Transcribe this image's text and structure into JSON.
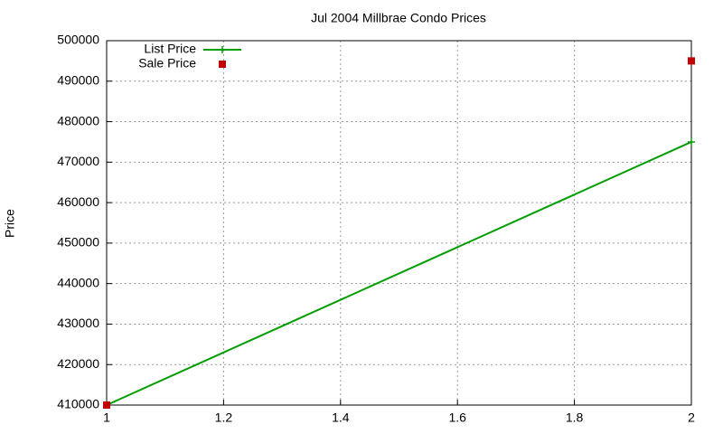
{
  "chart_data": {
    "type": "line",
    "title": "Jul 2004 Millbrae Condo Prices",
    "y_label": "Price",
    "x": [
      1,
      2
    ],
    "series": [
      {
        "name": "List Price",
        "color": "#009e00",
        "mode": "lines+points",
        "values": [
          410000,
          475000
        ]
      },
      {
        "name": "Sale Price",
        "color": "#c00000",
        "mode": "points",
        "values": [
          410000,
          495000
        ]
      }
    ],
    "xlim": [
      1,
      2
    ],
    "xticks": [
      1,
      1.2,
      1.4,
      1.6,
      1.8,
      2
    ],
    "ylim": [
      410000,
      500000
    ],
    "yticks": [
      410000,
      420000,
      430000,
      440000,
      450000,
      460000,
      470000,
      480000,
      490000,
      500000
    ],
    "grid": true,
    "legend": "top-left"
  }
}
